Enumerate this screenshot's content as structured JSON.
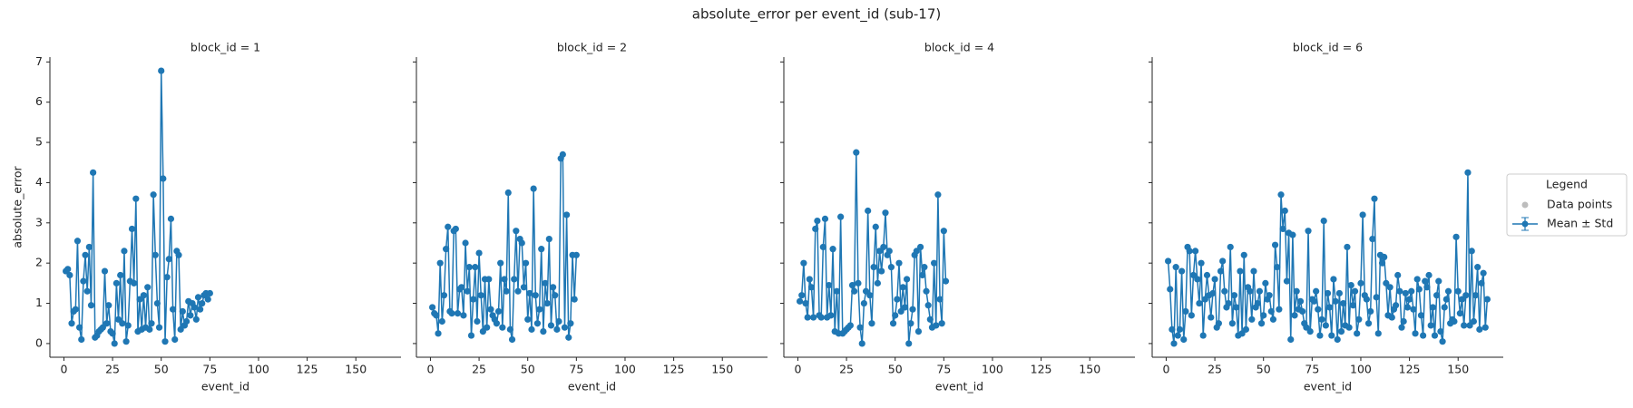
{
  "figure": {
    "title": "absolute_error per event_id (sub-17)",
    "legend": {
      "title": "Legend",
      "entries": [
        {
          "label": "Data points",
          "color": "#bdbdbd"
        },
        {
          "label": "Mean ± Std",
          "color": "#1f77b4"
        }
      ]
    }
  },
  "chart_data": [
    {
      "type": "line",
      "title": "block_id = 1",
      "x_label": "event_id",
      "y_label": "absolute_error",
      "color": "#1f77b4",
      "x": [
        1,
        2,
        3,
        4,
        5,
        6,
        7,
        8,
        9,
        10,
        11,
        12,
        13,
        14,
        15,
        16,
        17,
        18,
        19,
        20,
        21,
        22,
        23,
        24,
        25,
        26,
        27,
        28,
        29,
        30,
        31,
        32,
        33,
        34,
        35,
        36,
        37,
        38,
        39,
        40,
        41,
        42,
        43,
        44,
        45,
        46,
        47,
        48,
        49,
        50,
        51,
        52,
        53,
        54,
        55,
        56,
        57,
        58,
        59,
        60,
        61,
        62,
        63,
        64,
        65,
        66,
        67,
        68,
        69,
        70,
        71,
        72,
        73,
        74,
        75
      ],
      "values": [
        1.8,
        1.85,
        1.7,
        0.5,
        0.8,
        0.85,
        2.55,
        0.4,
        0.1,
        1.55,
        2.2,
        1.3,
        2.4,
        0.95,
        4.25,
        0.15,
        0.2,
        0.3,
        0.35,
        0.4,
        1.8,
        0.5,
        0.95,
        0.3,
        0.25,
        0.0,
        1.5,
        0.6,
        1.7,
        0.5,
        2.3,
        0.05,
        0.45,
        1.55,
        2.85,
        1.5,
        3.6,
        0.3,
        1.1,
        0.35,
        1.2,
        0.4,
        1.4,
        0.35,
        0.5,
        3.7,
        2.2,
        1.0,
        0.4,
        6.78,
        4.1,
        0.05,
        1.65,
        2.1,
        3.1,
        0.85,
        0.1,
        2.3,
        2.2,
        0.35,
        0.8,
        0.45,
        0.55,
        1.05,
        0.7,
        1.0,
        0.9,
        0.6,
        1.15,
        0.85,
        1.0,
        1.2,
        1.25,
        1.1,
        1.25
      ],
      "xlim": [
        -7.2,
        173.2
      ],
      "xticks": [
        0,
        25,
        50,
        75,
        100,
        125,
        150
      ],
      "ylim": [
        -0.34,
        7.12
      ],
      "yticks": [
        0,
        1,
        2,
        3,
        4,
        5,
        6,
        7
      ]
    },
    {
      "type": "line",
      "title": "block_id = 2",
      "x_label": "event_id",
      "color": "#1f77b4",
      "x": [
        1,
        2,
        3,
        4,
        5,
        6,
        7,
        8,
        9,
        10,
        11,
        12,
        13,
        14,
        15,
        16,
        17,
        18,
        19,
        20,
        21,
        22,
        23,
        24,
        25,
        26,
        27,
        28,
        29,
        30,
        31,
        32,
        33,
        34,
        35,
        36,
        37,
        38,
        39,
        40,
        41,
        42,
        43,
        44,
        45,
        46,
        47,
        48,
        49,
        50,
        51,
        52,
        53,
        54,
        55,
        56,
        57,
        58,
        59,
        60,
        61,
        62,
        63,
        64,
        65,
        66,
        67,
        68,
        69,
        70,
        71,
        72,
        73,
        74,
        75
      ],
      "values": [
        0.9,
        0.75,
        0.7,
        0.25,
        2.0,
        0.55,
        1.2,
        2.35,
        2.9,
        0.8,
        0.75,
        2.8,
        2.85,
        0.75,
        1.35,
        1.4,
        0.7,
        2.5,
        1.3,
        1.9,
        0.2,
        1.1,
        1.9,
        0.55,
        2.25,
        1.2,
        0.3,
        1.6,
        0.4,
        1.6,
        0.85,
        0.7,
        0.6,
        0.5,
        0.8,
        2.0,
        0.4,
        1.6,
        1.3,
        3.75,
        0.35,
        0.1,
        1.6,
        2.8,
        1.3,
        2.6,
        2.5,
        1.4,
        2.0,
        0.6,
        1.25,
        0.35,
        3.85,
        1.2,
        0.5,
        0.85,
        2.35,
        0.3,
        1.5,
        1.0,
        2.6,
        0.45,
        1.4,
        1.2,
        0.35,
        0.55,
        4.6,
        4.7,
        0.4,
        3.2,
        0.15,
        0.5,
        2.2,
        1.1,
        2.2
      ],
      "xlim": [
        -7.2,
        173.2
      ],
      "xticks": [
        0,
        25,
        50,
        75,
        100,
        125,
        150
      ],
      "ylim": [
        -0.34,
        7.12
      ],
      "yticks": [
        0,
        1,
        2,
        3,
        4,
        5,
        6,
        7
      ]
    },
    {
      "type": "line",
      "title": "block_id = 4",
      "x_label": "event_id",
      "color": "#1f77b4",
      "x": [
        1,
        2,
        3,
        4,
        5,
        6,
        7,
        8,
        9,
        10,
        11,
        12,
        13,
        14,
        15,
        16,
        17,
        18,
        19,
        20,
        21,
        22,
        23,
        24,
        25,
        26,
        27,
        28,
        29,
        30,
        31,
        32,
        33,
        34,
        35,
        36,
        37,
        38,
        39,
        40,
        41,
        42,
        43,
        44,
        45,
        46,
        47,
        48,
        49,
        50,
        51,
        52,
        53,
        54,
        55,
        56,
        57,
        58,
        59,
        60,
        61,
        62,
        63,
        64,
        65,
        66,
        67,
        68,
        69,
        70,
        71,
        72,
        73,
        74,
        75,
        76
      ],
      "values": [
        1.05,
        1.2,
        2.0,
        1.0,
        0.65,
        1.6,
        1.4,
        0.65,
        2.85,
        3.05,
        0.7,
        0.65,
        2.4,
        3.1,
        0.65,
        1.45,
        0.7,
        2.35,
        0.3,
        1.3,
        0.25,
        3.15,
        0.25,
        0.3,
        0.35,
        0.4,
        0.45,
        1.45,
        1.3,
        4.75,
        1.5,
        0.4,
        0.0,
        1.0,
        1.3,
        3.3,
        1.2,
        0.5,
        1.9,
        2.9,
        1.5,
        2.3,
        1.8,
        2.4,
        3.25,
        2.2,
        2.3,
        1.9,
        0.5,
        0.7,
        1.1,
        2.0,
        0.8,
        1.4,
        0.9,
        1.6,
        0.0,
        0.5,
        0.85,
        2.2,
        2.3,
        0.3,
        2.4,
        1.7,
        1.9,
        1.3,
        0.95,
        0.6,
        0.4,
        2.0,
        0.45,
        3.7,
        1.1,
        0.5,
        2.8,
        1.55
      ],
      "xlim": [
        -7.2,
        173.2
      ],
      "xticks": [
        0,
        25,
        50,
        75,
        100,
        125,
        150
      ],
      "ylim": [
        -0.34,
        7.12
      ],
      "yticks": [
        0,
        1,
        2,
        3,
        4,
        5,
        6,
        7
      ]
    },
    {
      "type": "line",
      "title": "block_id = 6",
      "x_label": "event_id",
      "color": "#1f77b4",
      "x": [
        1,
        2,
        3,
        4,
        5,
        6,
        7,
        8,
        9,
        10,
        11,
        12,
        13,
        14,
        15,
        16,
        17,
        18,
        19,
        20,
        21,
        22,
        23,
        24,
        25,
        26,
        27,
        28,
        29,
        30,
        31,
        32,
        33,
        34,
        35,
        36,
        37,
        38,
        39,
        40,
        41,
        42,
        43,
        44,
        45,
        46,
        47,
        48,
        49,
        50,
        51,
        52,
        53,
        54,
        55,
        56,
        57,
        58,
        59,
        60,
        61,
        62,
        63,
        64,
        65,
        66,
        67,
        68,
        69,
        70,
        71,
        72,
        73,
        74,
        75,
        76,
        77,
        78,
        79,
        80,
        81,
        82,
        83,
        84,
        85,
        86,
        87,
        88,
        89,
        90,
        91,
        92,
        93,
        94,
        95,
        96,
        97,
        98,
        99,
        100,
        101,
        102,
        103,
        104,
        105,
        106,
        107,
        108,
        109,
        110,
        111,
        112,
        113,
        114,
        115,
        116,
        117,
        118,
        119,
        120,
        121,
        122,
        123,
        124,
        125,
        126,
        127,
        128,
        129,
        130,
        131,
        132,
        133,
        134,
        135,
        136,
        137,
        138,
        139,
        140,
        141,
        142,
        143,
        144,
        145,
        146,
        147,
        148,
        149,
        150,
        151,
        152,
        153,
        154,
        155,
        156,
        157,
        158,
        159,
        160,
        161,
        162,
        163,
        164,
        165
      ],
      "values": [
        2.05,
        1.35,
        0.35,
        0.0,
        1.9,
        0.2,
        0.35,
        1.8,
        0.1,
        0.8,
        2.4,
        2.3,
        0.7,
        1.7,
        2.3,
        1.6,
        1.0,
        2.0,
        0.2,
        1.1,
        1.7,
        1.2,
        0.65,
        1.25,
        1.6,
        0.4,
        0.5,
        1.8,
        2.05,
        1.3,
        0.9,
        1.0,
        2.4,
        0.5,
        1.2,
        0.9,
        0.2,
        1.8,
        0.25,
        2.2,
        0.35,
        1.4,
        1.3,
        0.6,
        1.8,
        0.9,
        1.0,
        1.3,
        0.5,
        0.7,
        1.5,
        1.1,
        1.2,
        0.8,
        0.6,
        2.45,
        1.9,
        0.85,
        3.7,
        2.85,
        3.3,
        1.55,
        2.75,
        0.1,
        2.7,
        0.7,
        1.3,
        0.85,
        1.05,
        0.8,
        0.5,
        0.4,
        2.8,
        0.3,
        1.1,
        1.05,
        1.3,
        0.85,
        0.2,
        0.6,
        3.05,
        0.45,
        1.25,
        0.9,
        0.2,
        1.6,
        1.05,
        0.1,
        1.25,
        0.3,
        1.0,
        0.45,
        2.4,
        0.4,
        1.45,
        0.95,
        1.3,
        0.25,
        0.6,
        1.5,
        3.2,
        1.2,
        1.1,
        0.5,
        0.8,
        2.6,
        3.6,
        1.15,
        0.25,
        2.2,
        2.0,
        2.15,
        1.5,
        0.7,
        1.4,
        0.65,
        0.85,
        0.95,
        1.7,
        1.3,
        0.4,
        0.55,
        1.25,
        0.9,
        1.1,
        1.3,
        0.85,
        0.25,
        1.6,
        1.35,
        0.7,
        0.2,
        1.55,
        1.4,
        1.7,
        0.45,
        0.9,
        0.2,
        1.2,
        1.55,
        0.3,
        0.05,
        0.9,
        1.1,
        1.3,
        0.5,
        0.6,
        0.55,
        2.65,
        1.3,
        0.75,
        1.1,
        0.45,
        1.2,
        4.25,
        0.45,
        2.3,
        0.55,
        1.2,
        1.9,
        0.35,
        1.5,
        1.75,
        0.4,
        1.1
      ],
      "xlim": [
        -7.2,
        173.2
      ],
      "xticks": [
        0,
        25,
        50,
        75,
        100,
        125,
        150
      ],
      "ylim": [
        -0.34,
        7.12
      ],
      "yticks": [
        0,
        1,
        2,
        3,
        4,
        5,
        6,
        7
      ]
    }
  ]
}
